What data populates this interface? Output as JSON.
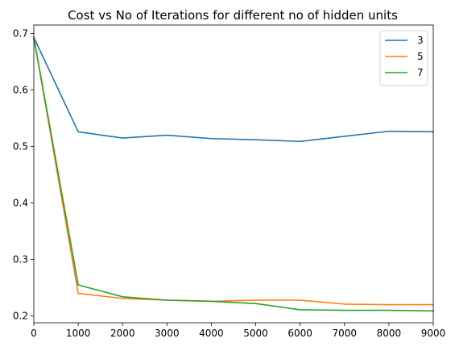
{
  "chart_data": {
    "type": "line",
    "title": "Cost vs No of Iterations for different no of hidden units",
    "xlabel": "",
    "ylabel": "",
    "x": [
      0,
      1000,
      2000,
      3000,
      4000,
      5000,
      6000,
      7000,
      8000,
      9000
    ],
    "xlim": [
      0,
      9000
    ],
    "ylim": [
      0.188,
      0.715
    ],
    "xticks": [
      "0",
      "1000",
      "2000",
      "3000",
      "4000",
      "5000",
      "6000",
      "7000",
      "8000",
      "9000"
    ],
    "yticks": [
      "0.2",
      "0.3",
      "0.4",
      "0.5",
      "0.6",
      "0.7"
    ],
    "grid": false,
    "legend_position": "top-right",
    "series": [
      {
        "name": "3",
        "color": "#1f77b4",
        "values": [
          0.693,
          0.526,
          0.515,
          0.52,
          0.514,
          0.512,
          0.509,
          0.518,
          0.527,
          0.526
        ]
      },
      {
        "name": "5",
        "color": "#ff7f0e",
        "values": [
          0.693,
          0.24,
          0.231,
          0.228,
          0.226,
          0.228,
          0.228,
          0.221,
          0.22,
          0.22
        ]
      },
      {
        "name": "7",
        "color": "#2ca02c",
        "values": [
          0.693,
          0.255,
          0.234,
          0.228,
          0.226,
          0.222,
          0.211,
          0.21,
          0.21,
          0.209
        ]
      }
    ]
  }
}
